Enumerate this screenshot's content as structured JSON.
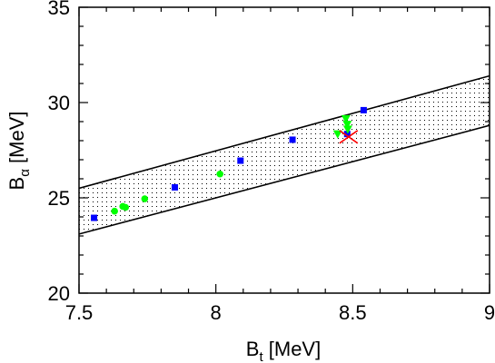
{
  "chart_data": {
    "type": "scatter",
    "xlabel": {
      "main": "B",
      "sub": "t",
      "unit": " [MeV]"
    },
    "ylabel": {
      "main": "B",
      "sub": "α",
      "unit": " [MeV]"
    },
    "xlim": [
      7.5,
      9.0
    ],
    "ylim": [
      20,
      35
    ],
    "xticks": [
      7.5,
      8.0,
      8.5,
      9.0
    ],
    "xtick_labels": [
      "7.5",
      "8",
      "8.5",
      "9"
    ],
    "yticks": [
      20,
      25,
      30,
      35
    ],
    "ytick_labels": [
      "20",
      "25",
      "30",
      "35"
    ],
    "grid": false,
    "legend": "none",
    "band": {
      "lower": {
        "x": [
          7.5,
          9.0
        ],
        "y": [
          23.1,
          28.8
        ]
      },
      "upper": {
        "x": [
          7.5,
          9.0
        ],
        "y": [
          25.5,
          31.4
        ]
      },
      "fill": "dotted"
    },
    "series": [
      {
        "marker": "square",
        "color": "#0000ff",
        "points": [
          {
            "x": 7.555,
            "y": 23.95
          },
          {
            "x": 7.85,
            "y": 25.55
          },
          {
            "x": 8.09,
            "y": 26.95
          },
          {
            "x": 8.28,
            "y": 28.05
          },
          {
            "x": 8.48,
            "y": 28.35
          },
          {
            "x": 8.54,
            "y": 29.6
          }
        ]
      },
      {
        "marker": "circle",
        "color": "#00ff00",
        "points": [
          {
            "x": 7.63,
            "y": 24.3
          },
          {
            "x": 7.66,
            "y": 24.55
          },
          {
            "x": 7.67,
            "y": 24.5
          },
          {
            "x": 7.74,
            "y": 24.95
          },
          {
            "x": 8.015,
            "y": 26.25
          }
        ]
      },
      {
        "marker": "triangle-down",
        "color": "#00ff00",
        "points": [
          {
            "x": 8.445,
            "y": 28.35
          },
          {
            "x": 8.475,
            "y": 29.15
          },
          {
            "x": 8.48,
            "y": 28.85
          },
          {
            "x": 8.482,
            "y": 28.6
          }
        ]
      },
      {
        "marker": "x",
        "color": "#ff0000",
        "points": [
          {
            "x": 8.485,
            "y": 28.2
          }
        ]
      }
    ]
  }
}
